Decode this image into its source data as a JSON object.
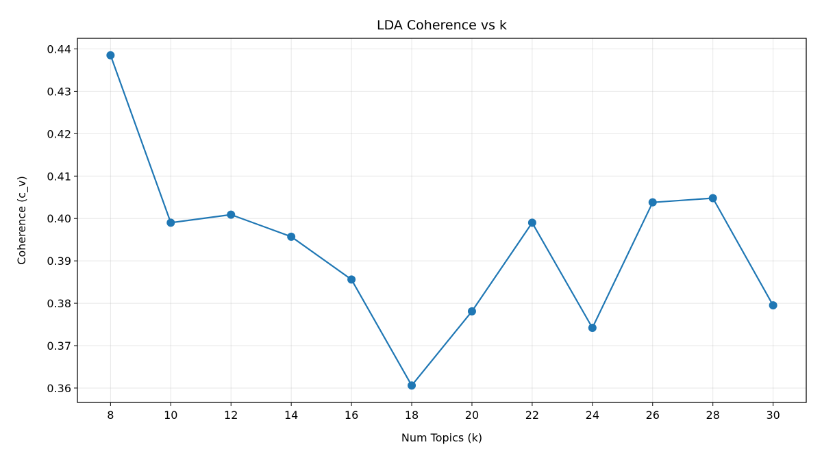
{
  "chart_data": {
    "type": "line",
    "title": "LDA Coherence vs k",
    "xlabel": "Num Topics (k)",
    "ylabel": "Coherence (c_v)",
    "x": [
      8,
      10,
      12,
      14,
      16,
      18,
      20,
      22,
      24,
      26,
      28,
      30
    ],
    "series": [
      {
        "values": [
          0.4385,
          0.399,
          0.4009,
          0.3957,
          0.3856,
          0.3606,
          0.3781,
          0.399,
          0.3742,
          0.4038,
          0.4048,
          0.3795
        ],
        "color": "#1f77b4",
        "marker": "circle"
      }
    ],
    "xticks": [
      "8",
      "10",
      "12",
      "14",
      "16",
      "18",
      "20",
      "22",
      "24",
      "26",
      "28",
      "30"
    ],
    "yticks": [
      "0.36",
      "0.37",
      "0.38",
      "0.39",
      "0.40",
      "0.41",
      "0.42",
      "0.43",
      "0.44"
    ],
    "xlim": [
      6.9,
      31.1
    ],
    "ylim": [
      0.3566,
      0.4425
    ],
    "grid": true
  }
}
